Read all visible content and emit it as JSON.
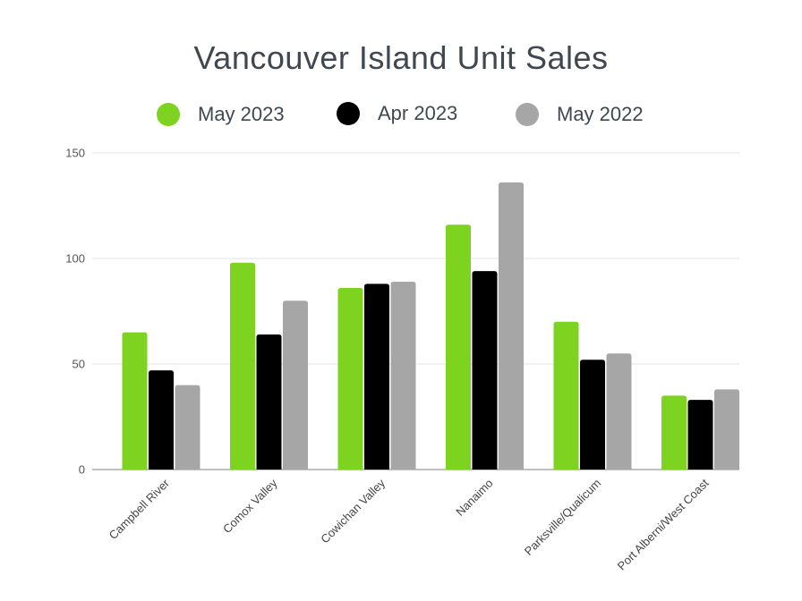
{
  "chart_data": {
    "type": "bar",
    "title": "Vancouver Island Unit Sales",
    "categories": [
      "Campbell River",
      "Comox Valley",
      "Cowichan Valley",
      "Nanaimo",
      "Parksville/Qualicum",
      "Port Alberni/West Coast"
    ],
    "series": [
      {
        "name": "May 2023",
        "color": "#7ed321",
        "values": [
          65,
          98,
          86,
          116,
          70,
          35
        ]
      },
      {
        "name": "Apr 2023",
        "color": "#000000",
        "values": [
          47,
          64,
          88,
          94,
          52,
          33
        ]
      },
      {
        "name": "May 2022",
        "color": "#a6a6a6",
        "values": [
          40,
          80,
          89,
          136,
          55,
          38
        ]
      }
    ],
    "ylim": [
      0,
      150
    ],
    "yticks": [
      0,
      50,
      100,
      150
    ],
    "xlabel": "",
    "ylabel": "",
    "grid": true,
    "legend": "top"
  }
}
